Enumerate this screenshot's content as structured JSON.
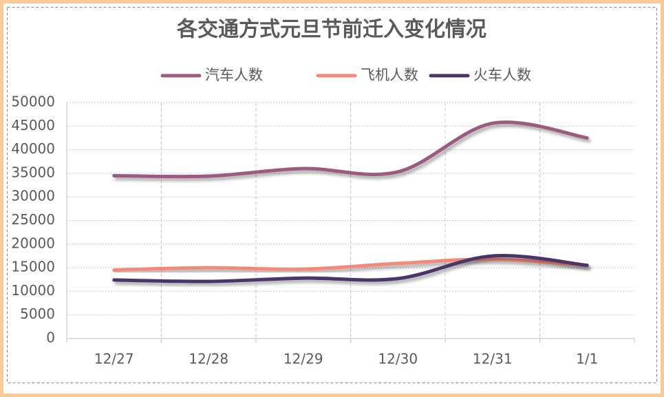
{
  "chart_data": {
    "type": "line",
    "title": "各交通方式元旦节前迁入变化情况",
    "categories": [
      "12/27",
      "12/28",
      "12/29",
      "12/30",
      "12/31",
      "1/1"
    ],
    "series": [
      {
        "name": "汽车人数",
        "color": "#9b5a80",
        "values": [
          34500,
          34400,
          36000,
          35300,
          45600,
          42500
        ]
      },
      {
        "name": "飞机人数",
        "color": "#f28a79",
        "values": [
          14500,
          15000,
          14700,
          15900,
          16800,
          15500
        ]
      },
      {
        "name": "火车人数",
        "color": "#4b3466",
        "values": [
          12400,
          12100,
          12800,
          12700,
          17500,
          15500
        ]
      }
    ],
    "ylim": [
      0,
      50000
    ],
    "yticks": [
      0,
      5000,
      10000,
      15000,
      20000,
      25000,
      30000,
      35000,
      40000,
      45000,
      50000
    ],
    "grid": true,
    "legend": "top",
    "smooth": true
  }
}
